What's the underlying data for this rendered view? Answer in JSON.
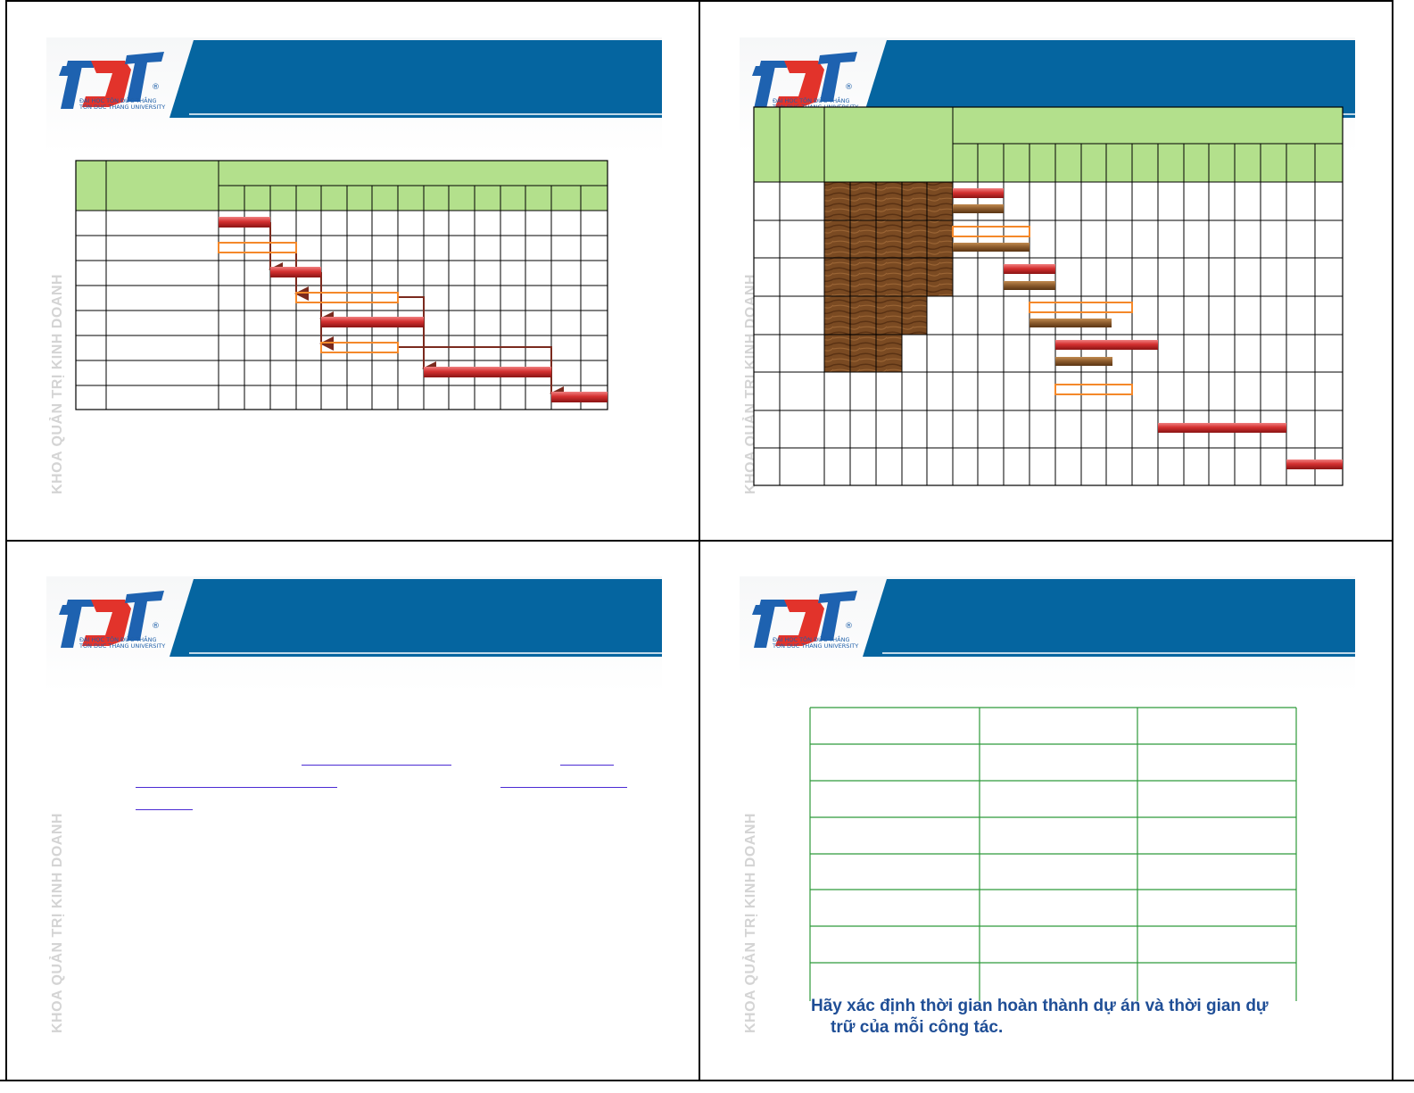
{
  "logo": {
    "brand": "TDT",
    "registered": "®",
    "line1": "ĐẠI HỌC TÔN ĐỨC THẮNG",
    "line2": "TON DUC THANG UNIVERSITY"
  },
  "sidebar_label": "KHOA QUẢN TRỊ KINH DOANH",
  "colors": {
    "banner_blue": "#0565a0",
    "header_green": "#b3e08c",
    "bar_red": "#c8232c",
    "bar_outline_orange": "#f4882a",
    "arrow_brown": "#7a2a1e",
    "wood": "#7a4a22",
    "table_green": "#2e9a3a",
    "caption_blue": "#1f4e96"
  },
  "slide4": {
    "caption_line1": "Hãy xác định thời gian hoàn thành dự án và thời gian dự",
    "caption_line2": "trữ của mỗi công tác."
  }
}
